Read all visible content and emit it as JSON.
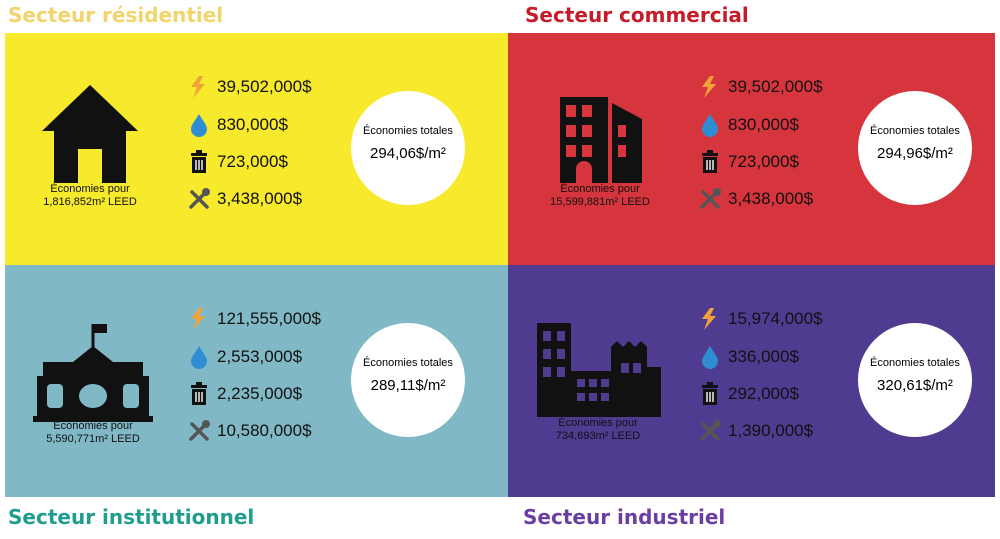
{
  "sectors": [
    {
      "title": "Secteur résidentiel",
      "caption": [
        "Économies pour",
        "1,816,852m² LEED"
      ],
      "savings": [
        "39,502,000$",
        "830,000$",
        "723,000$",
        "3,438,000$"
      ],
      "total_label": "Économies totales",
      "total": "294,06$/m²"
    },
    {
      "title": "Secteur commercial",
      "caption": [
        "Économies pour",
        "15,599,881m² LEED"
      ],
      "savings": [
        "39,502,000$",
        "830,000$",
        "723,000$",
        "3,438,000$"
      ],
      "total_label": "Économies totales",
      "total": "294,96$/m²"
    },
    {
      "title": "Secteur institutionnel",
      "caption": [
        "Économies pour",
        "5,590,771m² LEED"
      ],
      "savings": [
        "121,555,000$",
        "2,553,000$",
        "2,235,000$",
        "10,580,000$"
      ],
      "total_label": "Économies totales",
      "total": "289,11$/m²"
    },
    {
      "title": "Secteur industriel",
      "caption": [
        "Économies pour",
        "734,693m² LEED"
      ],
      "savings": [
        "15,974,000$",
        "336,000$",
        "292,000$",
        "1,390,000$"
      ],
      "total_label": "Économies totales",
      "total": "320,61$/m²"
    }
  ]
}
